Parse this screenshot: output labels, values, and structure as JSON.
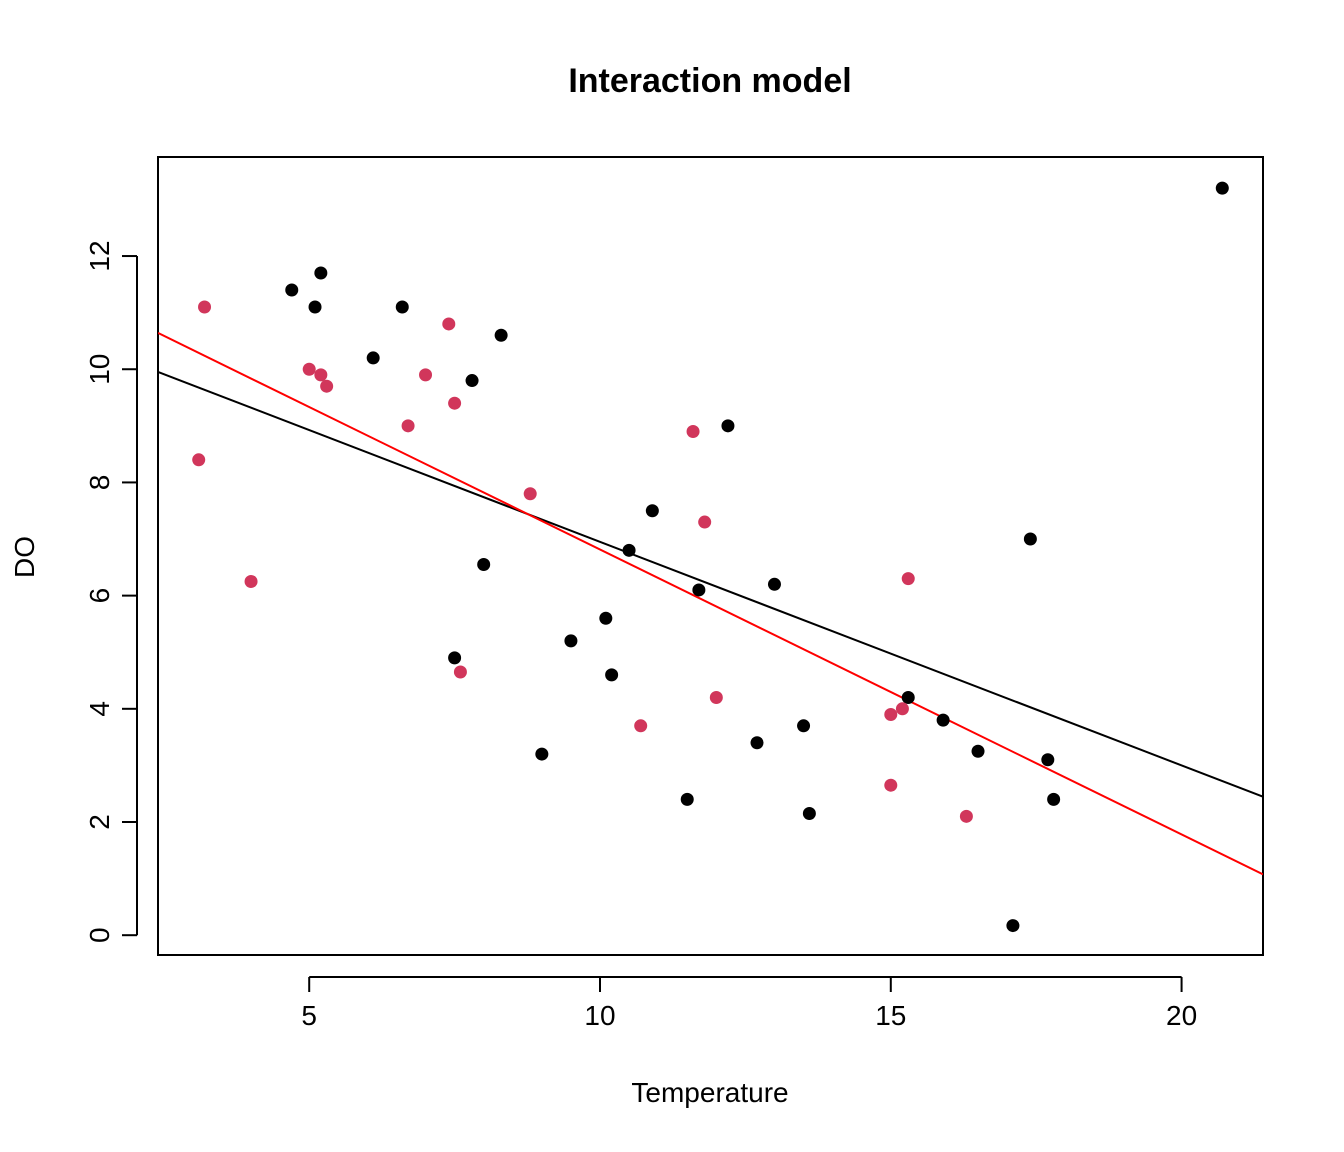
{
  "chart_data": {
    "type": "scatter",
    "title": "Interaction model",
    "xlabel": "Temperature",
    "ylabel": "DO",
    "xlim": [
      2.4,
      21.4
    ],
    "ylim": [
      -0.35,
      13.75
    ],
    "x_ticks": [
      5,
      10,
      15,
      20
    ],
    "y_ticks": [
      0,
      2,
      4,
      6,
      8,
      10,
      12
    ],
    "grid": false,
    "legend": "none",
    "series": [
      {
        "color": "#000000",
        "points": [
          {
            "x": 4.7,
            "y": 11.4
          },
          {
            "x": 5.1,
            "y": 11.1
          },
          {
            "x": 5.2,
            "y": 11.7
          },
          {
            "x": 6.1,
            "y": 10.2
          },
          {
            "x": 6.6,
            "y": 11.1
          },
          {
            "x": 7.8,
            "y": 9.8
          },
          {
            "x": 8.3,
            "y": 10.6
          },
          {
            "x": 7.5,
            "y": 4.9
          },
          {
            "x": 8.0,
            "y": 6.55
          },
          {
            "x": 9.0,
            "y": 3.2
          },
          {
            "x": 9.5,
            "y": 5.2
          },
          {
            "x": 10.1,
            "y": 5.6
          },
          {
            "x": 10.2,
            "y": 4.6
          },
          {
            "x": 10.5,
            "y": 6.8
          },
          {
            "x": 10.9,
            "y": 7.5
          },
          {
            "x": 11.5,
            "y": 2.4
          },
          {
            "x": 11.7,
            "y": 6.1
          },
          {
            "x": 12.2,
            "y": 9.0
          },
          {
            "x": 12.7,
            "y": 3.4
          },
          {
            "x": 13.0,
            "y": 6.2
          },
          {
            "x": 13.5,
            "y": 3.7
          },
          {
            "x": 13.6,
            "y": 2.15
          },
          {
            "x": 15.3,
            "y": 4.2
          },
          {
            "x": 15.9,
            "y": 3.8
          },
          {
            "x": 16.5,
            "y": 3.25
          },
          {
            "x": 17.1,
            "y": 0.17
          },
          {
            "x": 17.4,
            "y": 7.0
          },
          {
            "x": 17.7,
            "y": 3.1
          },
          {
            "x": 17.8,
            "y": 2.4
          },
          {
            "x": 20.7,
            "y": 13.2
          }
        ],
        "fit_line": {
          "color": "#000000",
          "intercept": 10.9,
          "slope": -0.395
        }
      },
      {
        "color": "#d1365b",
        "points": [
          {
            "x": 3.1,
            "y": 8.4
          },
          {
            "x": 3.2,
            "y": 11.1
          },
          {
            "x": 4.0,
            "y": 6.25
          },
          {
            "x": 5.0,
            "y": 10.0
          },
          {
            "x": 5.2,
            "y": 9.9
          },
          {
            "x": 5.3,
            "y": 9.7
          },
          {
            "x": 6.7,
            "y": 9.0
          },
          {
            "x": 7.0,
            "y": 9.9
          },
          {
            "x": 7.4,
            "y": 10.8
          },
          {
            "x": 7.5,
            "y": 9.4
          },
          {
            "x": 7.6,
            "y": 4.65
          },
          {
            "x": 8.8,
            "y": 7.8
          },
          {
            "x": 10.7,
            "y": 3.7
          },
          {
            "x": 11.6,
            "y": 8.9
          },
          {
            "x": 11.8,
            "y": 7.3
          },
          {
            "x": 12.0,
            "y": 4.2
          },
          {
            "x": 15.0,
            "y": 3.9
          },
          {
            "x": 15.0,
            "y": 2.65
          },
          {
            "x": 15.2,
            "y": 4.0
          },
          {
            "x": 15.3,
            "y": 6.3
          },
          {
            "x": 16.3,
            "y": 2.1
          }
        ],
        "fit_line": {
          "color": "#ff0000",
          "intercept": 11.85,
          "slope": -0.5035
        }
      }
    ]
  }
}
